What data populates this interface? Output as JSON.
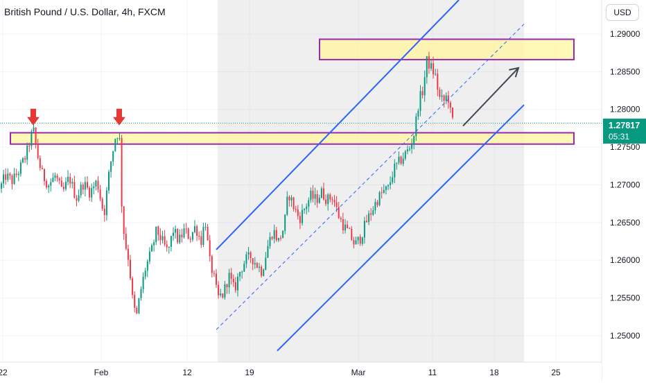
{
  "header": {
    "title": "British Pound / U.S. Dollar, 4h, FXCM"
  },
  "axis": {
    "currency_label": "USD"
  },
  "last_price": {
    "value": "1.27817",
    "countdown": "05:31",
    "color": "#089981"
  },
  "colors": {
    "up": "#089981",
    "down": "#f23645",
    "channel": "#2962ff",
    "zone_fill": "#fff59d",
    "zone_border": "#9c27b0",
    "marker": "#e53935",
    "arrow": "#434651",
    "grid": "#f0f3fa"
  },
  "chart_data": {
    "type": "candlestick",
    "symbol": "GBP/USD",
    "timeframe": "4h",
    "source": "FXCM",
    "y_range": [
      1.2465,
      1.2945
    ],
    "y_ticks": [
      "1.29000",
      "1.28500",
      "1.28000",
      "1.27500",
      "1.27000",
      "1.26500",
      "1.26000",
      "1.25500",
      "1.25000"
    ],
    "y_tick_values": [
      1.29,
      1.285,
      1.28,
      1.275,
      1.27,
      1.265,
      1.26,
      1.255,
      1.25
    ],
    "x_ticks": [
      "22",
      "Feb",
      "12",
      "19",
      "Mar",
      "11",
      "18",
      "25"
    ],
    "guide_path": [
      [
        0,
        1.2695
      ],
      [
        8,
        1.2712
      ],
      [
        18,
        1.2705
      ],
      [
        28,
        1.272
      ],
      [
        38,
        1.274
      ],
      [
        44,
        1.2762
      ],
      [
        48,
        1.2773
      ],
      [
        54,
        1.274
      ],
      [
        60,
        1.2715
      ],
      [
        70,
        1.27
      ],
      [
        80,
        1.2712
      ],
      [
        90,
        1.2688
      ],
      [
        100,
        1.271
      ],
      [
        110,
        1.2682
      ],
      [
        120,
        1.2702
      ],
      [
        130,
        1.269
      ],
      [
        140,
        1.2705
      ],
      [
        150,
        1.266
      ],
      [
        158,
        1.272
      ],
      [
        166,
        1.2762
      ],
      [
        172,
        1.2772
      ],
      [
        176,
        1.2665
      ],
      [
        180,
        1.2625
      ],
      [
        186,
        1.26
      ],
      [
        192,
        1.254
      ],
      [
        197,
        1.2525
      ],
      [
        202,
        1.2555
      ],
      [
        210,
        1.259
      ],
      [
        218,
        1.261
      ],
      [
        226,
        1.264
      ],
      [
        234,
        1.2625
      ],
      [
        242,
        1.261
      ],
      [
        250,
        1.264
      ],
      [
        258,
        1.2625
      ],
      [
        266,
        1.264
      ],
      [
        274,
        1.263
      ],
      [
        282,
        1.2645
      ],
      [
        290,
        1.2625
      ],
      [
        296,
        1.2655
      ],
      [
        302,
        1.26
      ],
      [
        308,
        1.258
      ],
      [
        314,
        1.255
      ],
      [
        322,
        1.2555
      ],
      [
        330,
        1.258
      ],
      [
        338,
        1.256
      ],
      [
        346,
        1.2585
      ],
      [
        354,
        1.26
      ],
      [
        362,
        1.2605
      ],
      [
        370,
        1.2595
      ],
      [
        378,
        1.2585
      ],
      [
        386,
        1.2618
      ],
      [
        394,
        1.264
      ],
      [
        402,
        1.2625
      ],
      [
        410,
        1.2645
      ],
      [
        416,
        1.269
      ],
      [
        424,
        1.267
      ],
      [
        432,
        1.2655
      ],
      [
        440,
        1.267
      ],
      [
        448,
        1.2685
      ],
      [
        456,
        1.268
      ],
      [
        464,
        1.269
      ],
      [
        472,
        1.268
      ],
      [
        480,
        1.2685
      ],
      [
        488,
        1.266
      ],
      [
        496,
        1.2645
      ],
      [
        504,
        1.2635
      ],
      [
        512,
        1.262
      ],
      [
        520,
        1.263
      ],
      [
        528,
        1.265
      ],
      [
        536,
        1.2665
      ],
      [
        544,
        1.268
      ],
      [
        552,
        1.269
      ],
      [
        560,
        1.2695
      ],
      [
        568,
        1.272
      ],
      [
        576,
        1.273
      ],
      [
        584,
        1.274
      ],
      [
        592,
        1.275
      ],
      [
        598,
        1.277
      ],
      [
        604,
        1.281
      ],
      [
        610,
        1.2825
      ],
      [
        616,
        1.2865
      ],
      [
        622,
        1.2855
      ],
      [
        628,
        1.2845
      ],
      [
        634,
        1.2815
      ],
      [
        640,
        1.281
      ],
      [
        646,
        1.282
      ],
      [
        650,
        1.2795
      ],
      [
        654,
        1.2782
      ]
    ],
    "candle_range": [
      0,
      655
    ],
    "channel": {
      "upper": [
        [
          312,
          1.2614
        ],
        [
          662,
          1.2945
        ]
      ],
      "lower": [
        [
          400,
          1.248
        ],
        [
          756,
          1.2806
        ]
      ],
      "mid": [
        [
          312,
          1.2508
        ],
        [
          756,
          1.2913
        ]
      ]
    },
    "zones": [
      {
        "name": "resistance-zone",
        "y_top": 1.2893,
        "y_bottom": 1.2866,
        "x_from": 461,
        "x_to": 828
      },
      {
        "name": "support-zone",
        "y_top": 1.2769,
        "y_bottom": 1.2754,
        "x_from": 15,
        "x_to": 828
      }
    ],
    "markers": [
      {
        "name": "down-arrow-1",
        "x": 48,
        "y": 1.2777
      },
      {
        "name": "down-arrow-2",
        "x": 172,
        "y": 1.2777
      }
    ],
    "projection_arrow": {
      "from": [
        668,
        1.2778
      ],
      "to": [
        748,
        1.2855
      ]
    },
    "last_price": 1.27817
  }
}
